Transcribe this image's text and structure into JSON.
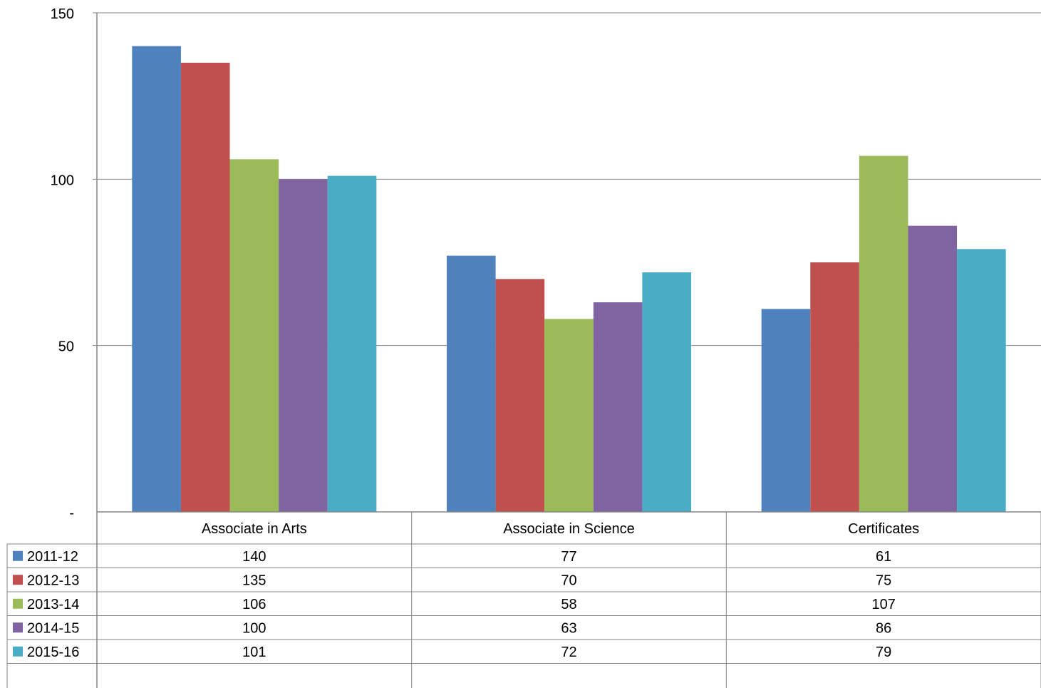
{
  "chart_data": {
    "type": "bar",
    "categories": [
      "Associate in Arts",
      "Associate in Science",
      "Certificates"
    ],
    "series": [
      {
        "name": "2011-12",
        "color": "#4F81BD",
        "values": [
          140,
          77,
          61
        ]
      },
      {
        "name": "2012-13",
        "color": "#C0504D",
        "values": [
          135,
          70,
          75
        ]
      },
      {
        "name": "2013-14",
        "color": "#9BBB59",
        "values": [
          106,
          58,
          107
        ]
      },
      {
        "name": "2014-15",
        "color": "#8064A2",
        "values": [
          100,
          63,
          86
        ]
      },
      {
        "name": "2015-16",
        "color": "#4BACC6",
        "values": [
          101,
          72,
          79
        ]
      }
    ],
    "ylim": [
      0,
      150
    ],
    "yticks": [
      {
        "value": 0,
        "label": "-"
      },
      {
        "value": 50,
        "label": "50"
      },
      {
        "value": 100,
        "label": "100"
      },
      {
        "value": 150,
        "label": "150"
      }
    ],
    "grid": true,
    "legend_placement": "data-table-left",
    "data_table": true
  }
}
